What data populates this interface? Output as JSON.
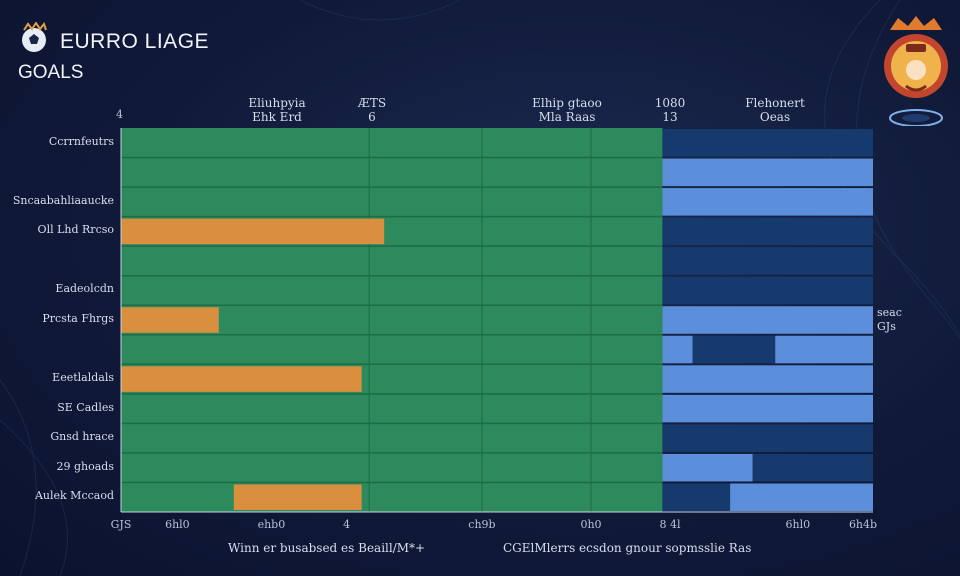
{
  "header": {
    "title": "EURRO LIAGE",
    "subtitle": "GOALS",
    "corner_mark": "4"
  },
  "columns": [
    {
      "line1": "Eliuhpyia",
      "line2": "Ehk Erd"
    },
    {
      "line1": "ÆTS",
      "line2": "6"
    },
    {
      "line1": "Elhip gtaoo",
      "line2": "Mla Raas"
    },
    {
      "line1": "1080",
      "line2": "13"
    },
    {
      "line1": "Flehonert",
      "line2": "Oeas"
    }
  ],
  "right_note": {
    "line1": "seac",
    "line2": "GJs"
  },
  "footer": {
    "left": "Winn er busabsed es Beaill/M*+",
    "right": "CGElMlerrs ecsdon gnour sopmsslie Ras"
  },
  "chart_data": {
    "type": "bar",
    "title": "EURRO LIAGE",
    "subtitle": "GOALS",
    "xlabel": "",
    "ylabel": "",
    "xlim": [
      0,
      100
    ],
    "x_ticks": [
      "GJS",
      "6hl0",
      "ehb0",
      "4",
      "ch9b",
      "0h0",
      "8 4l",
      "6hl0",
      "6h4b"
    ],
    "x_tick_values": [
      0,
      7.5,
      20,
      30,
      48,
      62.5,
      73,
      90,
      100
    ],
    "green_zone": [
      0,
      72
    ],
    "blue_zone": [
      72,
      100
    ],
    "categories": [
      "Ccrrnfeutrs",
      "",
      "Sncaabahliaaucke",
      "Oll Lhd Rrcso",
      "",
      "Eadeolcdn",
      "Prcsta Fhrgs",
      "",
      "Eeetlaldals",
      "SE Cadles",
      "Gnsd hrace",
      "29 ghoads",
      "Aulek Mccaod"
    ],
    "series": [
      {
        "name": "Goals",
        "color": "#d98f3e",
        "ranges": [
          null,
          null,
          null,
          [
            0,
            35
          ],
          null,
          null,
          [
            0,
            13
          ],
          null,
          [
            0,
            32
          ],
          null,
          null,
          null,
          [
            15,
            32
          ]
        ]
      }
    ],
    "blue_segments": [
      [
        [
          72,
          100,
          "dark"
        ]
      ],
      [
        [
          72,
          100,
          "light"
        ]
      ],
      [
        [
          72,
          100,
          "light"
        ]
      ],
      [
        [
          72,
          100,
          "dark"
        ]
      ],
      [
        [
          72,
          100,
          "dark"
        ]
      ],
      [
        [
          72,
          100,
          "dark"
        ]
      ],
      [
        [
          72,
          100,
          "light"
        ]
      ],
      [
        [
          72,
          76,
          "light"
        ],
        [
          76,
          87,
          "dark"
        ],
        [
          87,
          100,
          "light"
        ]
      ],
      [
        [
          72,
          100,
          "light"
        ]
      ],
      [
        [
          72,
          100,
          "light"
        ]
      ],
      [
        [
          72,
          100,
          "dark"
        ]
      ],
      [
        [
          72,
          84,
          "light"
        ],
        [
          84,
          100,
          "dark"
        ]
      ],
      [
        [
          72,
          81,
          "dark"
        ],
        [
          81,
          100,
          "light"
        ]
      ]
    ],
    "colors": {
      "green": "#2c8a5c",
      "green_line": "#1e6b48",
      "blue_light": "#5b8fdb",
      "blue_dark": "#163a6e",
      "orange": "#d98f3e"
    }
  }
}
